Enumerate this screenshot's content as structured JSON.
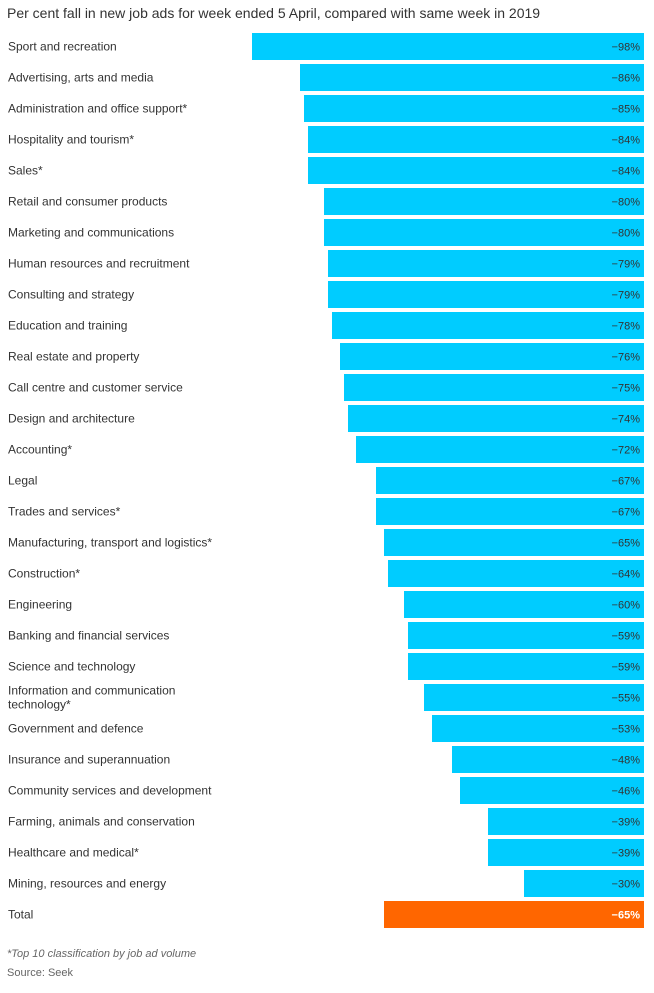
{
  "colors": {
    "bar": "#00ccff",
    "total_bar": "#ff6600",
    "text": "#333333"
  },
  "footnote": "*Top 10 classification by job ad volume",
  "source": "Source: Seek",
  "chart_data": {
    "type": "bar",
    "orientation": "horizontal",
    "title": "Per cent fall in new job ads for week ended 5 April, compared with same week in 2019",
    "xlabel": "",
    "ylabel": "",
    "xlim": [
      0,
      100
    ],
    "grid": false,
    "legend": "none",
    "categories": [
      "Sport and recreation",
      "Advertising, arts and media",
      "Administration and office support*",
      "Hospitality and tourism*",
      "Sales*",
      "Retail and consumer products",
      "Marketing and communications",
      "Human resources and recruitment",
      "Consulting and strategy",
      "Education and training",
      "Real estate and property",
      "Call centre and customer service",
      "Design and architecture",
      "Accounting*",
      "Legal",
      "Trades and services*",
      "Manufacturing, transport and logistics*",
      "Construction*",
      "Engineering",
      "Banking and financial services",
      "Science and technology",
      "Information and communication technology*",
      "Government and defence",
      "Insurance and superannuation",
      "Community services and development",
      "Farming, animals and conservation",
      "Healthcare and medical*",
      "Mining, resources and energy",
      "Total"
    ],
    "category_lines": [
      [
        "Sport and recreation"
      ],
      [
        "Advertising, arts and media"
      ],
      [
        "Administration and office support*"
      ],
      [
        "Hospitality and tourism*"
      ],
      [
        "Sales*"
      ],
      [
        "Retail and consumer products"
      ],
      [
        "Marketing and communications"
      ],
      [
        "Human resources and recruitment"
      ],
      [
        "Consulting and strategy"
      ],
      [
        "Education and training"
      ],
      [
        "Real estate and property"
      ],
      [
        "Call centre and customer service"
      ],
      [
        "Design and architecture"
      ],
      [
        "Accounting*"
      ],
      [
        "Legal"
      ],
      [
        "Trades and services*"
      ],
      [
        "Manufacturing, transport and logistics*"
      ],
      [
        "Construction*"
      ],
      [
        "Engineering"
      ],
      [
        "Banking and financial services"
      ],
      [
        "Science and technology"
      ],
      [
        "Information and communication",
        "technology*"
      ],
      [
        "Government and defence"
      ],
      [
        "Insurance and superannuation"
      ],
      [
        "Community services and development"
      ],
      [
        "Farming, animals and conservation"
      ],
      [
        "Healthcare and medical*"
      ],
      [
        "Mining, resources and energy"
      ],
      [
        "Total"
      ]
    ],
    "values": [
      -98,
      -86,
      -85,
      -84,
      -84,
      -80,
      -80,
      -79,
      -79,
      -78,
      -76,
      -75,
      -74,
      -72,
      -67,
      -67,
      -65,
      -64,
      -60,
      -59,
      -59,
      -55,
      -53,
      -48,
      -46,
      -39,
      -39,
      -30,
      -65
    ],
    "value_labels": [
      "−98%",
      "−86%",
      "−85%",
      "−84%",
      "−84%",
      "−80%",
      "−80%",
      "−79%",
      "−79%",
      "−78%",
      "−76%",
      "−75%",
      "−74%",
      "−72%",
      "−67%",
      "−67%",
      "−65%",
      "−64%",
      "−60%",
      "−59%",
      "−59%",
      "−55%",
      "−53%",
      "−48%",
      "−46%",
      "−39%",
      "−39%",
      "−30%",
      "−65%"
    ],
    "highlight": "Total"
  }
}
